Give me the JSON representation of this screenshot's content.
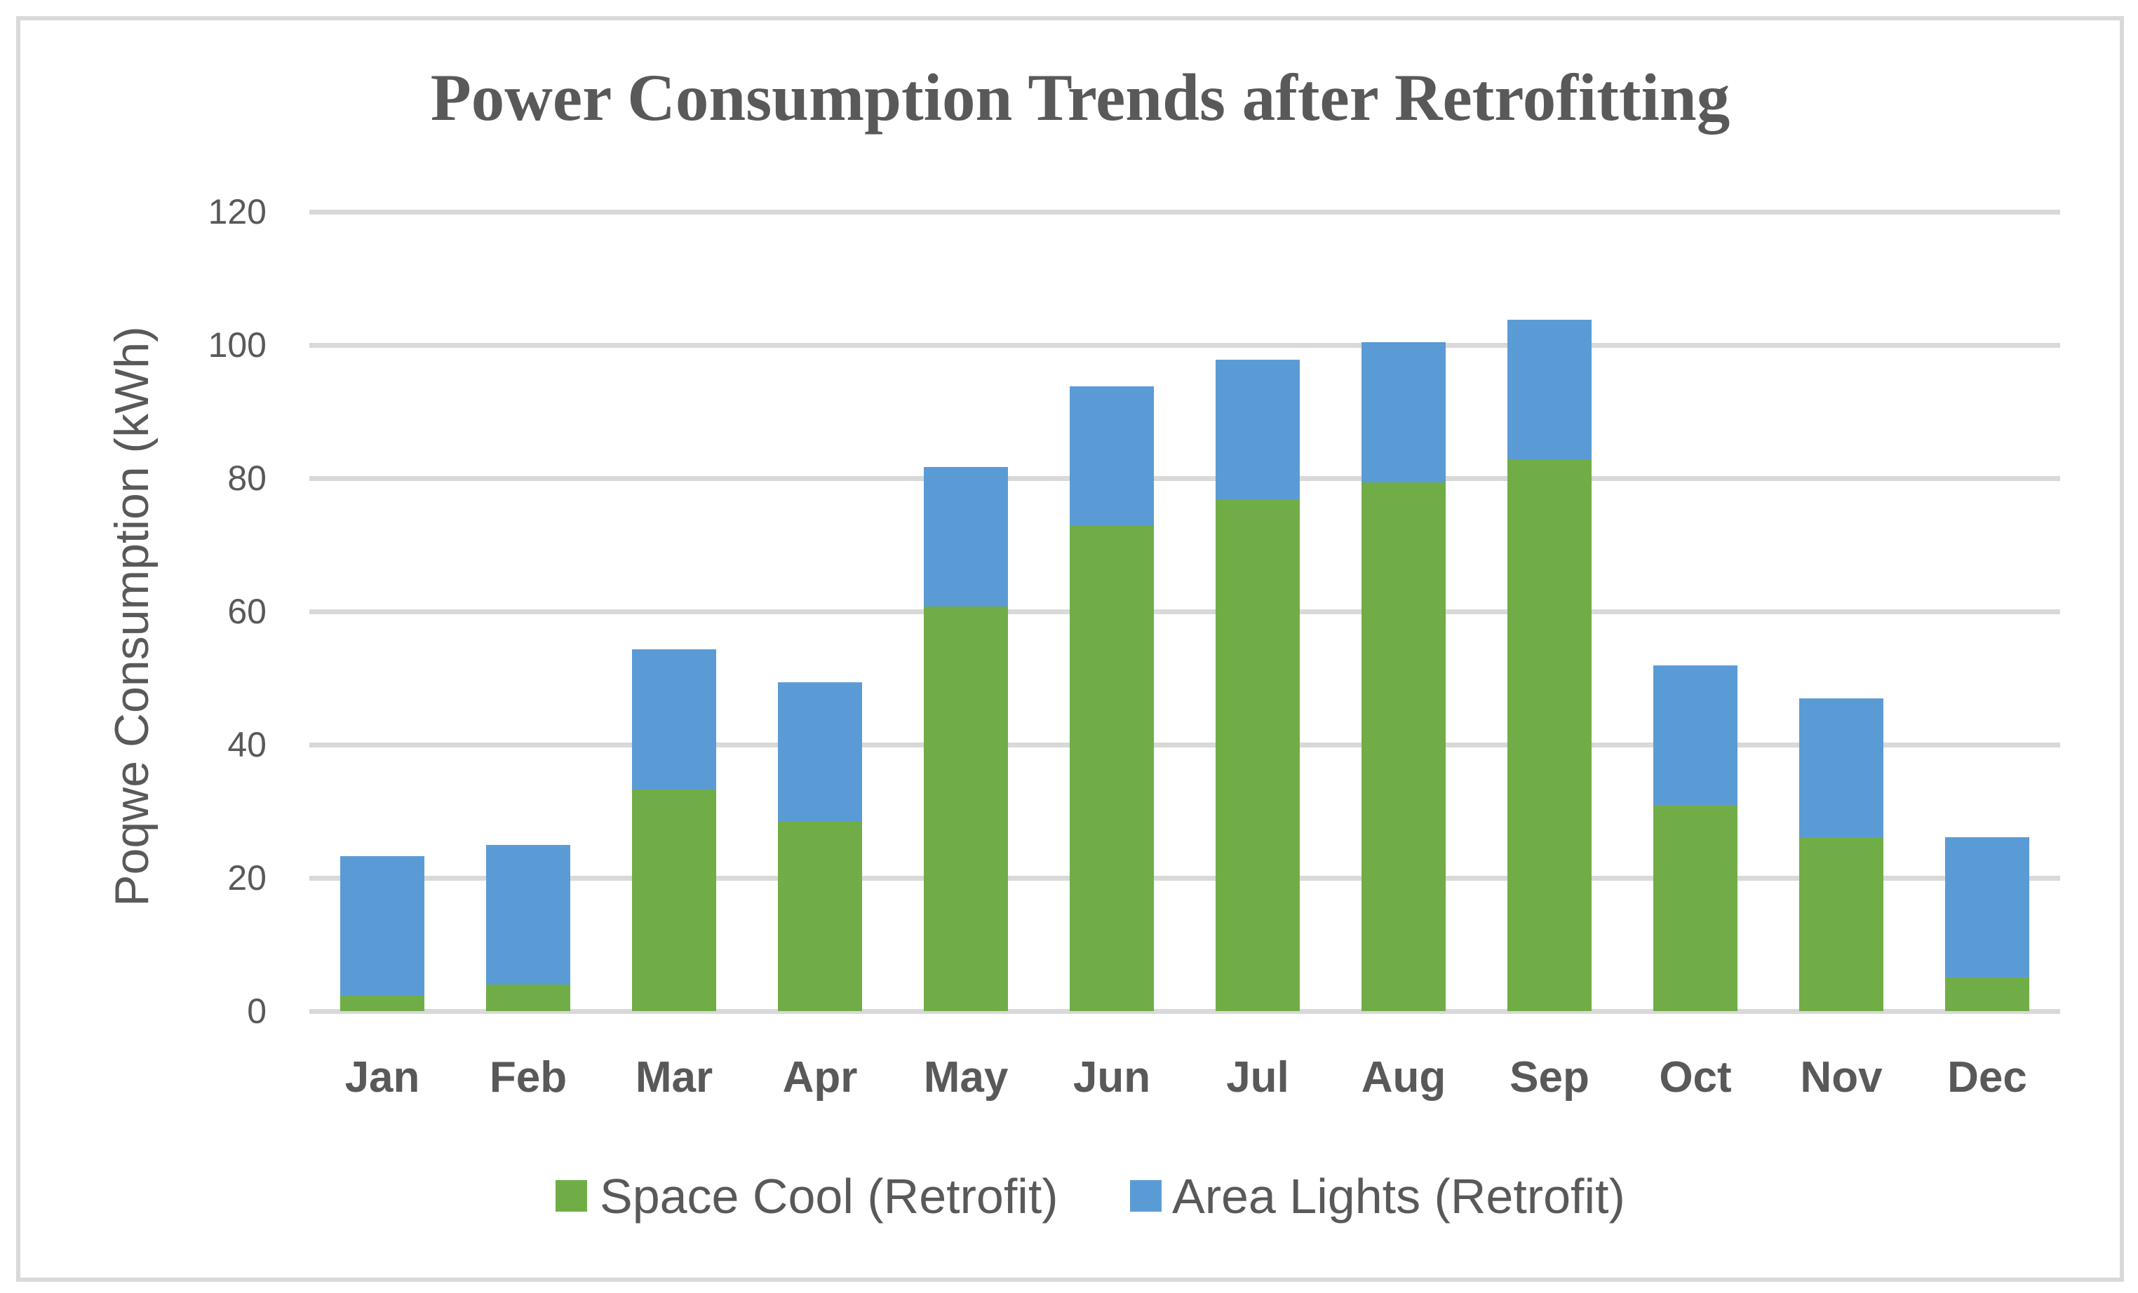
{
  "theme": {
    "bg": "#FFFFFF",
    "border": "#D9D9D9",
    "grid": "#D9D9D9",
    "text": "#595959"
  },
  "chart_data": {
    "type": "bar",
    "stacked": true,
    "title": "Power Consumption Trends after Retrofitting",
    "ylabel": "Poqwe Consumption (kWh)",
    "xlabel": "",
    "categories": [
      "Jan",
      "Feb",
      "Mar",
      "Apr",
      "May",
      "Jun",
      "Jul",
      "Aug",
      "Sep",
      "Oct",
      "Nov",
      "Dec"
    ],
    "series": [
      {
        "name": "Space Cool (Retrofit)",
        "color": "#70AD47",
        "values": [
          2.3,
          4.0,
          33.3,
          28.4,
          60.7,
          72.8,
          76.8,
          79.4,
          82.8,
          30.9,
          26.0,
          5.1
        ]
      },
      {
        "name": "Area Lights (Retrofit)",
        "color": "#5B9BD5",
        "values": [
          21,
          21,
          21,
          21,
          21,
          21,
          21,
          21,
          21,
          21,
          21,
          21
        ]
      }
    ],
    "totals": [
      23.3,
      25.0,
      54.3,
      49.4,
      81.7,
      93.8,
      97.8,
      100.4,
      103.8,
      51.9,
      47.0,
      26.1
    ],
    "yticks": [
      0,
      20,
      40,
      60,
      80,
      100,
      120
    ],
    "ylim": [
      0,
      120
    ],
    "grid": true,
    "legend_position": "bottom"
  }
}
